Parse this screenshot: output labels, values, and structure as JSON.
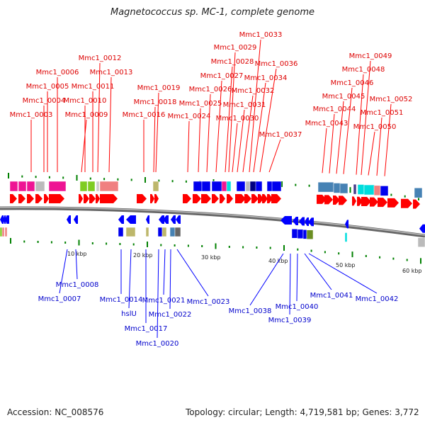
{
  "title": "Magnetococcus sp. MC-1, complete genome",
  "accession": "Accession: NC_008576",
  "summary": "Topology: circular; Length: 4,719,581 bp; Genes: 3,772",
  "scale_labels": [
    "10 kbp",
    "20 kbp",
    "30 kbp",
    "40 kbp",
    "50 kbp",
    "60 kbp"
  ],
  "forward_genes": [
    "Mmc1_0003",
    "Mmc1_0004",
    "Mmc1_0005",
    "Mmc1_0006",
    "Mmc1_0009",
    "Mmc1_0010",
    "Mmc1_0011",
    "Mmc1_0012",
    "Mmc1_0013",
    "Mmc1_0016",
    "Mmc1_0018",
    "Mmc1_0019",
    "Mmc1_0024",
    "Mmc1_0025",
    "Mmc1_0026",
    "Mmc1_0027",
    "Mmc1_0028",
    "Mmc1_0029",
    "Mmc1_0030",
    "Mmc1_0031",
    "Mmc1_0032",
    "Mmc1_0033",
    "Mmc1_0034",
    "Mmc1_0036",
    "Mmc1_0037",
    "Mmc1_0043",
    "Mmc1_0044",
    "Mmc1_0045",
    "Mmc1_0046",
    "Mmc1_0048",
    "Mmc1_0049",
    "Mmc1_0050",
    "Mmc1_0051",
    "Mmc1_0052"
  ],
  "reverse_genes": [
    "Mmc1_0007",
    "Mmc1_0008",
    "Mmc1_0014",
    "hslU",
    "Mmc1_0017",
    "Mmc1_0020",
    "Mmc1_0021",
    "Mmc1_0022",
    "Mmc1_0023",
    "Mmc1_0038",
    "Mmc1_0039",
    "Mmc1_0040",
    "Mmc1_0041",
    "Mmc1_0042"
  ],
  "colors": {
    "forward": "#ff0000",
    "reverse": "#0000ff",
    "backbone": "#888888",
    "tick": "#008000"
  }
}
